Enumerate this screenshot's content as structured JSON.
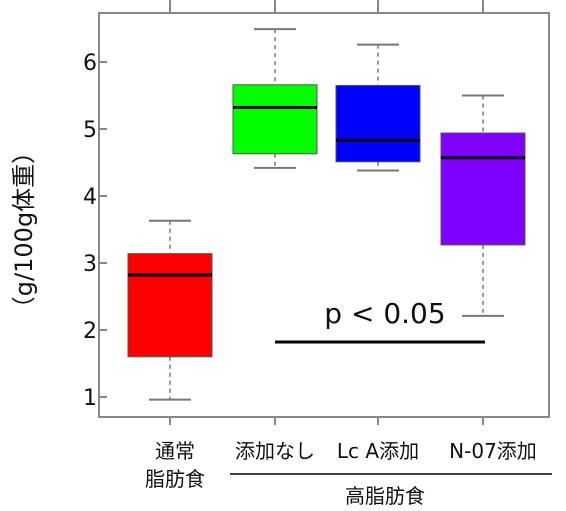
{
  "chart_data": {
    "type": "box",
    "ylabel": "（g/100g体重）",
    "ylim": [
      0.9,
      6.8
    ],
    "yticks": [
      "1",
      "2",
      "3",
      "4",
      "5",
      "6"
    ],
    "categories": [
      [
        "通常",
        "脂肪食"
      ],
      [
        "添加なし"
      ],
      [
        "Lc A添加"
      ],
      [
        "N-07添加"
      ]
    ],
    "group_label": "高脂肪食",
    "boxes": [
      {
        "color": "#ff0000",
        "min": 0.96,
        "q1": 1.6,
        "median": 2.82,
        "q3": 3.14,
        "max": 3.63
      },
      {
        "color": "#00ff00",
        "min": 4.42,
        "q1": 4.63,
        "median": 5.32,
        "q3": 5.66,
        "max": 6.49
      },
      {
        "color": "#0000ff",
        "min": 4.38,
        "q1": 4.51,
        "median": 4.83,
        "q3": 5.65,
        "max": 6.26
      },
      {
        "color": "#8000ff",
        "min": 2.21,
        "q1": 3.27,
        "median": 4.57,
        "q3": 4.94,
        "max": 5.5
      }
    ],
    "annotation": {
      "text": "p < 0.05"
    }
  }
}
